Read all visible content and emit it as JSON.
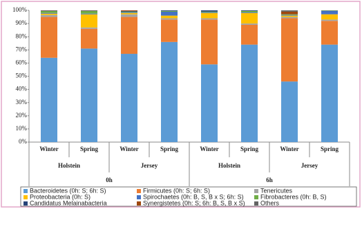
{
  "chart_data": {
    "type": "stacked-bar",
    "categories": [
      "Winter",
      "Spring",
      "Winter",
      "Spring",
      "Winter",
      "Spring",
      "Winter",
      "Spring"
    ],
    "breeds": [
      "Holstein",
      "Jersey",
      "Holstein",
      "Jersey"
    ],
    "times": [
      "0h",
      "6h"
    ],
    "ylim": [
      0,
      100
    ],
    "yticks": [
      {
        "value": 0,
        "label": "0%"
      },
      {
        "value": 10,
        "label": "10%"
      },
      {
        "value": 20,
        "label": "20%"
      },
      {
        "value": 30,
        "label": "30%"
      },
      {
        "value": 40,
        "label": "40%"
      },
      {
        "value": 50,
        "label": "50%"
      },
      {
        "value": 60,
        "label": "60%"
      },
      {
        "value": 70,
        "label": "70%"
      },
      {
        "value": 80,
        "label": "80%"
      },
      {
        "value": 90,
        "label": "90%"
      },
      {
        "value": 100,
        "label": "100%"
      }
    ],
    "series": [
      {
        "name": "Bacteroidetes (0h: S; 6h: S)",
        "color": "#5b9bd5",
        "values": [
          64,
          71,
          67,
          76,
          59,
          74,
          46,
          74
        ]
      },
      {
        "name": "Firmicutes (0h: S; 6h: S)",
        "color": "#ed7d31",
        "values": [
          31,
          15,
          28,
          17,
          34,
          15,
          48,
          18
        ]
      },
      {
        "name": "Tenericutes",
        "color": "#a5a5a5",
        "values": [
          1.5,
          1,
          2,
          1,
          1,
          1,
          1,
          1
        ]
      },
      {
        "name": "Proteobacteria (0h: S)",
        "color": "#ffc000",
        "values": [
          1,
          10,
          1,
          2,
          4,
          8,
          1,
          4
        ]
      },
      {
        "name": "Spirochaetes (0h: B, S, B x S; 6h: S)",
        "color": "#4472c4",
        "values": [
          0.5,
          0.5,
          0.5,
          3,
          0.5,
          0.5,
          0.5,
          2.5
        ]
      },
      {
        "name": "Fibrobacteres (0h: B, S)",
        "color": "#70ad47",
        "values": [
          1.5,
          2,
          0.5,
          0.5,
          0.5,
          1,
          0.5,
          0.3
        ]
      },
      {
        "name": "Candidatus Melainabacteria",
        "color": "#264478",
        "values": [
          0.3,
          0.3,
          0.5,
          0.5,
          1,
          0.5,
          0,
          0.2
        ]
      },
      {
        "name": "Synergistetes (0h: S; 6h: B, S, B x S)",
        "color": "#9e480e",
        "values": [
          0.2,
          0.2,
          0.5,
          0,
          0,
          0,
          2,
          0
        ]
      },
      {
        "name": "Others",
        "color": "#636363",
        "values": [
          0,
          0,
          0,
          0,
          0,
          0,
          1,
          0
        ]
      }
    ]
  }
}
